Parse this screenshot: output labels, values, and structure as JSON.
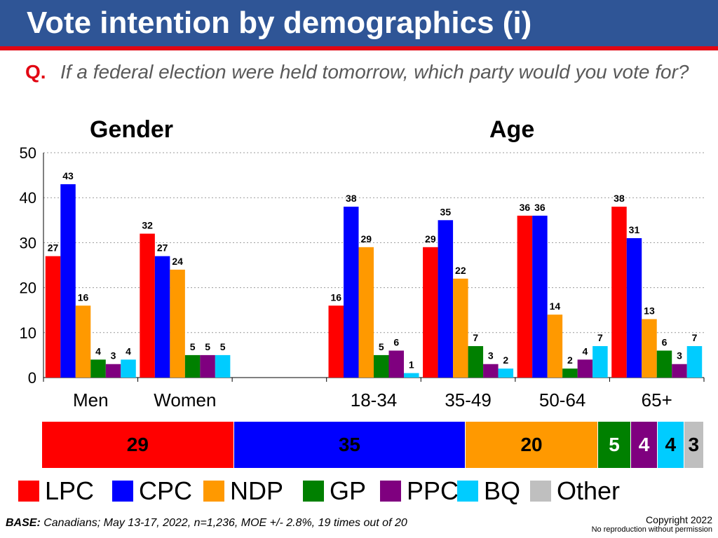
{
  "header": {
    "title": "Vote intention by demographics (i)"
  },
  "question": {
    "label": "Q.",
    "text": "If a federal election were held tomorrow, which party would you vote for?"
  },
  "group_titles": {
    "gender": "Gender",
    "age": "Age"
  },
  "chart_data": {
    "type": "bar",
    "ylim": [
      0,
      50
    ],
    "yticks": [
      0,
      10,
      20,
      30,
      40,
      50
    ],
    "grid": true,
    "legend_position": "bottom",
    "categories": [
      "Men",
      "Women",
      "18-34",
      "35-49",
      "50-64",
      "65+"
    ],
    "series": [
      {
        "name": "LPC",
        "color": "#ff0000",
        "values": [
          27,
          32,
          16,
          29,
          36,
          38
        ]
      },
      {
        "name": "CPC",
        "color": "#0000ff",
        "values": [
          43,
          27,
          38,
          35,
          36,
          31
        ]
      },
      {
        "name": "NDP",
        "color": "#ff9900",
        "values": [
          16,
          24,
          29,
          22,
          14,
          13
        ]
      },
      {
        "name": "GP",
        "color": "#008000",
        "values": [
          4,
          5,
          5,
          7,
          2,
          6
        ]
      },
      {
        "name": "PPC",
        "color": "#7f007f",
        "values": [
          3,
          5,
          6,
          3,
          4,
          3
        ]
      },
      {
        "name": "BQ",
        "color": "#00ccff",
        "values": [
          4,
          5,
          1,
          2,
          7,
          7
        ]
      }
    ]
  },
  "total_bar": [
    {
      "party": "LPC",
      "value": 29,
      "color": "#ff0000"
    },
    {
      "party": "CPC",
      "value": 35,
      "color": "#0000ff"
    },
    {
      "party": "NDP",
      "value": 20,
      "color": "#ff9900"
    },
    {
      "party": "GP",
      "value": 5,
      "color": "#008000"
    },
    {
      "party": "PPC",
      "value": 4,
      "color": "#7f007f"
    },
    {
      "party": "BQ",
      "value": 4,
      "color": "#00ccff"
    },
    {
      "party": "Other",
      "value": 3,
      "color": "#bfbfbf"
    }
  ],
  "legend": [
    {
      "label": "LPC",
      "color": "#ff0000"
    },
    {
      "label": "CPC",
      "color": "#0000ff"
    },
    {
      "label": "NDP",
      "color": "#ff9900"
    },
    {
      "label": "GP",
      "color": "#008000"
    },
    {
      "label": "PPC",
      "color": "#7f007f"
    },
    {
      "label": "BQ",
      "color": "#00ccff"
    },
    {
      "label": "Other",
      "color": "#bfbfbf"
    }
  ],
  "footer": {
    "base_label": "BASE:",
    "base_text": " Canadians; May 13-17, 2022, n=1,236,  MOE +/- 2.8%, 19 times out of 20",
    "copyright": "Copyright 2022",
    "copyright_note": "No reproduction without permission"
  }
}
